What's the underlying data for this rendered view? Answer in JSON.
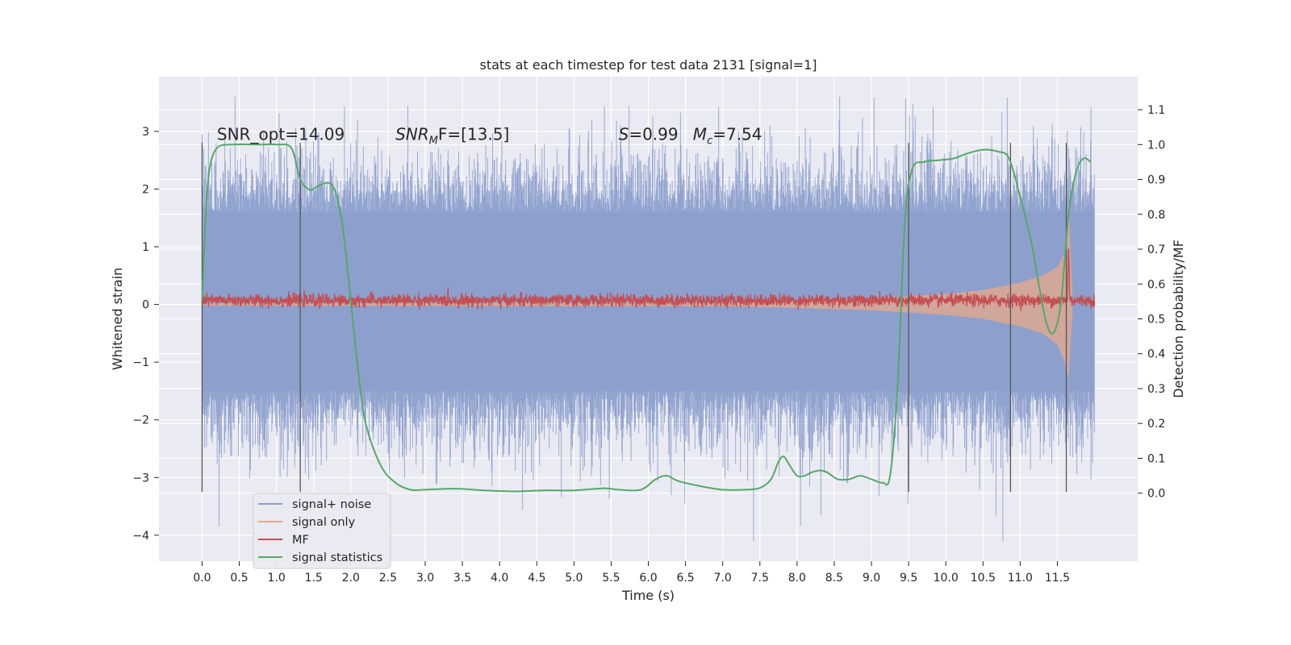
{
  "chart_data": {
    "type": "line",
    "title": "stats at each timestep for test data 2131 [signal=1]",
    "xlabel": "Time (s)",
    "ylabel": "Whitened strain",
    "y2label": "Detection probability/MF",
    "xlim": [
      -0.58,
      12.58
    ],
    "ylim": [
      -4.45,
      3.95
    ],
    "y2lim": [
      -0.195,
      1.195
    ],
    "x_ticks": [
      0.0,
      0.5,
      1.0,
      1.5,
      2.0,
      2.5,
      3.0,
      3.5,
      4.0,
      4.5,
      5.0,
      5.5,
      6.0,
      6.5,
      7.0,
      7.5,
      8.0,
      8.5,
      9.0,
      9.5,
      10.0,
      10.5,
      11.0,
      11.5
    ],
    "y_ticks": [
      -4,
      -3,
      -2,
      -1,
      0,
      1,
      2,
      3
    ],
    "y2_ticks": [
      0.0,
      0.1,
      0.2,
      0.3,
      0.4,
      0.5,
      0.6,
      0.7,
      0.8,
      0.9,
      1.0,
      1.1
    ],
    "grid": true,
    "legend_position": "lower-left",
    "annotations": [
      {
        "text": "SNR_opt=14.09",
        "x": 0.2,
        "y": 2.85
      },
      {
        "prefix": "",
        "main": "SNR",
        "sub": "M",
        "suffix": "F=[13.5]",
        "x": 2.6,
        "y": 2.85
      },
      {
        "prefix": "",
        "main": "S",
        "sub": "",
        "suffix": "=0.99",
        "x": 5.6,
        "y": 2.85
      },
      {
        "prefix": "",
        "main": "M",
        "sub": "c",
        "suffix": "=7.54",
        "x": 6.6,
        "y": 2.85
      }
    ],
    "vertical_lines": [
      {
        "x": 0.0,
        "y_range": [
          -3.25,
          2.8
        ]
      },
      {
        "x": 1.32,
        "y_range": [
          -3.25,
          2.8
        ]
      },
      {
        "x": 9.5,
        "y_range": [
          -3.25,
          2.8
        ]
      },
      {
        "x": 10.87,
        "y_range": [
          -3.25,
          2.8
        ]
      },
      {
        "x": 11.62,
        "y_range": [
          -3.25,
          2.8
        ]
      }
    ],
    "series": [
      {
        "name": "signal+ noise",
        "color": "#8c9fcc",
        "axis": "left",
        "kind": "noise",
        "x_range": [
          0.0,
          12.0
        ],
        "band": [
          -1.5,
          1.6
        ],
        "peak_range": [
          -4.1,
          3.6
        ]
      },
      {
        "name": "signal only",
        "color": "#e8a88a",
        "axis": "left",
        "kind": "chirp_envelope",
        "x": [
          0.0,
          7.0,
          8.0,
          9.0,
          10.0,
          10.5,
          11.0,
          11.3,
          11.5,
          11.6,
          11.65,
          11.7
        ],
        "upper": [
          0.02,
          0.03,
          0.06,
          0.1,
          0.18,
          0.25,
          0.38,
          0.5,
          0.65,
          0.9,
          1.8,
          0.3
        ],
        "lower": [
          -0.02,
          -0.03,
          -0.06,
          -0.1,
          -0.18,
          -0.25,
          -0.38,
          -0.5,
          -0.7,
          -1.0,
          -1.3,
          -0.2
        ]
      },
      {
        "name": "MF",
        "color": "#c44e52",
        "axis": "left",
        "kind": "mf",
        "x_range": [
          0.0,
          12.0
        ],
        "baseline": 0.07,
        "amplitude": 0.12,
        "spike_x": 11.65,
        "spike_y": 1.0
      },
      {
        "name": "signal statistics",
        "color": "#55a868",
        "axis": "right",
        "kind": "line",
        "x": [
          0.0,
          0.05,
          0.1,
          0.2,
          0.4,
          0.8,
          1.0,
          1.2,
          1.32,
          1.45,
          1.55,
          1.7,
          1.8,
          1.9,
          2.0,
          2.1,
          2.2,
          2.4,
          2.6,
          2.8,
          3.0,
          3.4,
          3.8,
          4.2,
          4.6,
          5.0,
          5.4,
          5.6,
          5.9,
          6.1,
          6.25,
          6.4,
          6.7,
          7.0,
          7.3,
          7.5,
          7.65,
          7.75,
          7.82,
          7.9,
          8.0,
          8.1,
          8.2,
          8.3,
          8.4,
          8.55,
          8.7,
          8.85,
          9.0,
          9.15,
          9.25,
          9.35,
          9.45,
          9.55,
          9.7,
          9.9,
          10.1,
          10.3,
          10.5,
          10.7,
          10.85,
          11.0,
          11.15,
          11.25,
          11.35,
          11.45,
          11.55,
          11.65,
          11.75,
          11.85,
          11.95
        ],
        "y": [
          0.55,
          0.8,
          0.93,
          0.99,
          1.0,
          1.0,
          1.0,
          0.99,
          0.9,
          0.87,
          0.88,
          0.89,
          0.86,
          0.75,
          0.55,
          0.35,
          0.2,
          0.08,
          0.03,
          0.01,
          0.01,
          0.013,
          0.008,
          0.005,
          0.008,
          0.008,
          0.014,
          0.01,
          0.01,
          0.04,
          0.05,
          0.035,
          0.02,
          0.01,
          0.01,
          0.015,
          0.04,
          0.09,
          0.105,
          0.08,
          0.05,
          0.05,
          0.06,
          0.065,
          0.06,
          0.04,
          0.04,
          0.05,
          0.04,
          0.03,
          0.05,
          0.3,
          0.78,
          0.93,
          0.95,
          0.955,
          0.96,
          0.975,
          0.985,
          0.98,
          0.96,
          0.85,
          0.72,
          0.6,
          0.49,
          0.46,
          0.55,
          0.8,
          0.92,
          0.96,
          0.95
        ]
      }
    ]
  }
}
